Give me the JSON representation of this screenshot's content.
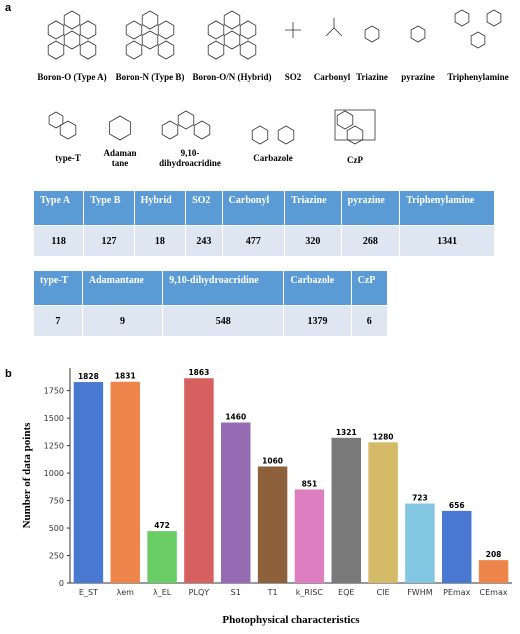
{
  "panel_a": {
    "label": "a",
    "structures": [
      "Boron-O (Type A)",
      "Boron-N (Type B)",
      "Boron-O/N (Hybrid)",
      "SO2",
      "Carbonyl",
      "Triazine",
      "pyrazine",
      "Triphenylamine",
      "type-T",
      "Adaman tane",
      "9,10-dihydroacridine",
      "Carbazole",
      "CzP"
    ],
    "tables": [
      {
        "header": [
          "Type A",
          "Type B",
          "Hybrid",
          "SO2",
          "Carbonyl",
          "Triazine",
          "pyrazine",
          "Triphenylamine"
        ],
        "row": [
          "118",
          "127",
          "18",
          "243",
          "477",
          "320",
          "268",
          "1341"
        ]
      },
      {
        "header": [
          "type-T",
          "Adamantane",
          "9,10-dihydroacridine",
          "Carbazole",
          "CzP"
        ],
        "row": [
          "7",
          "9",
          "548",
          "1379",
          "6"
        ]
      }
    ]
  },
  "panel_b": {
    "label": "b"
  },
  "chart_data": {
    "type": "bar",
    "xlabel": "Photophysical characteristics",
    "ylabel": "Number of data points",
    "categories": [
      "E_ST",
      "λem",
      "λ_EL",
      "PLQY",
      "S1",
      "T1",
      "k_RISC",
      "EQE",
      "CIE",
      "FWHM",
      "PEmax",
      "CEmax"
    ],
    "values": [
      1828,
      1831,
      472,
      1863,
      1460,
      1060,
      851,
      1321,
      1280,
      723,
      656,
      208
    ],
    "colors": [
      "#4878d0",
      "#ee854a",
      "#6acc64",
      "#d65f5f",
      "#956cb4",
      "#8c613c",
      "#dc7ec0",
      "#797979",
      "#d5bb67",
      "#82c6e2",
      "#4878d0",
      "#ee854a"
    ],
    "ylim": [
      0,
      1956
    ],
    "yticks": [
      0,
      250,
      500,
      750,
      1000,
      1250,
      1500,
      1750
    ],
    "grid": false
  }
}
